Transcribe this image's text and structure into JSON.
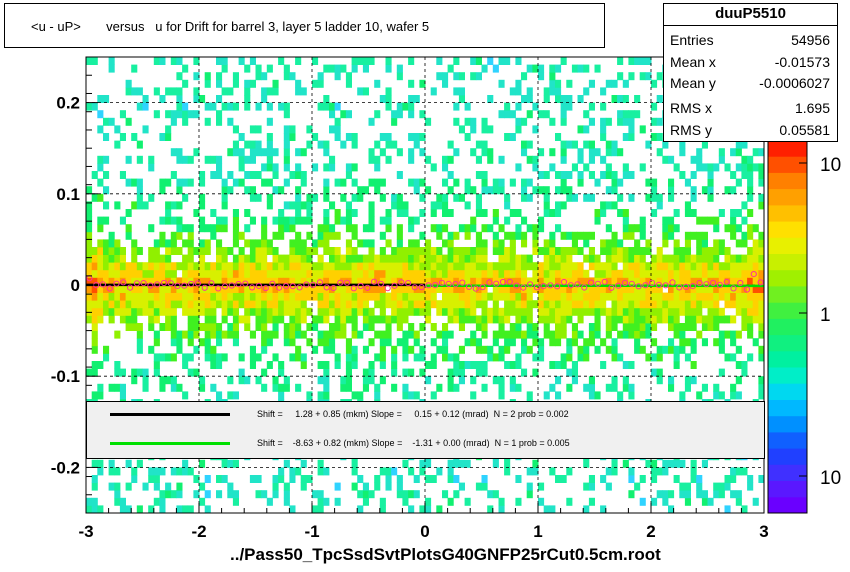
{
  "title": "<u - uP>       versus   u for Drift for barrel 3, layer 5 ladder 10, wafer 5",
  "stats": {
    "name": "duuP5510",
    "rows": [
      {
        "label": "Entries",
        "value": "54956"
      },
      {
        "label": "Mean x",
        "value": "-0.01573"
      },
      {
        "label": "Mean y",
        "value": "-0.0006027"
      },
      {
        "label": "RMS x",
        "value": "1.695"
      },
      {
        "label": "RMS y",
        "value": "0.05581"
      }
    ]
  },
  "legend": {
    "black_text": "Shift =     1.28 + 0.85 (mkm) Slope =     0.15 + 0.12 (mrad)  N = 2 prob = 0.002",
    "green_text": "Shift =    -8.63 + 0.82 (mkm) Slope =    -1.31 + 0.00 (mrad)  N = 1 prob = 0.005"
  },
  "x_title": "../Pass50_TpcSsdSvtPlotsG40GNFP25rCut0.5cm.root",
  "colors": {
    "fit_black": "#000000",
    "fit_green": "#00e000",
    "profile_marker": "#ff3399"
  },
  "chart_data": {
    "type": "heatmap",
    "xlim": [
      -3,
      3
    ],
    "ylim": [
      -0.25,
      0.25
    ],
    "x_ticks": [
      -3,
      -2,
      -1,
      0,
      1,
      2,
      3
    ],
    "y_ticks": [
      -0.2,
      -0.1,
      0,
      0.1,
      0.2
    ],
    "x_tick_labels": [
      "-3",
      "-2",
      "-1",
      "0",
      "1",
      "2",
      "3"
    ],
    "y_tick_labels": [
      "-0.2",
      "-0.1",
      "0",
      "0.1",
      "0.2"
    ],
    "grid": true,
    "colorbar_labels": [
      "10",
      "1",
      "10"
    ],
    "fits": [
      {
        "name": "black",
        "x_range": [
          -3,
          0
        ],
        "shift_um": 1.28,
        "slope_mrad": 0.15
      },
      {
        "name": "green",
        "x_range": [
          0,
          3
        ],
        "shift_um": -8.63,
        "slope_mrad": -1.31
      }
    ],
    "core_width_y": 0.008
  }
}
